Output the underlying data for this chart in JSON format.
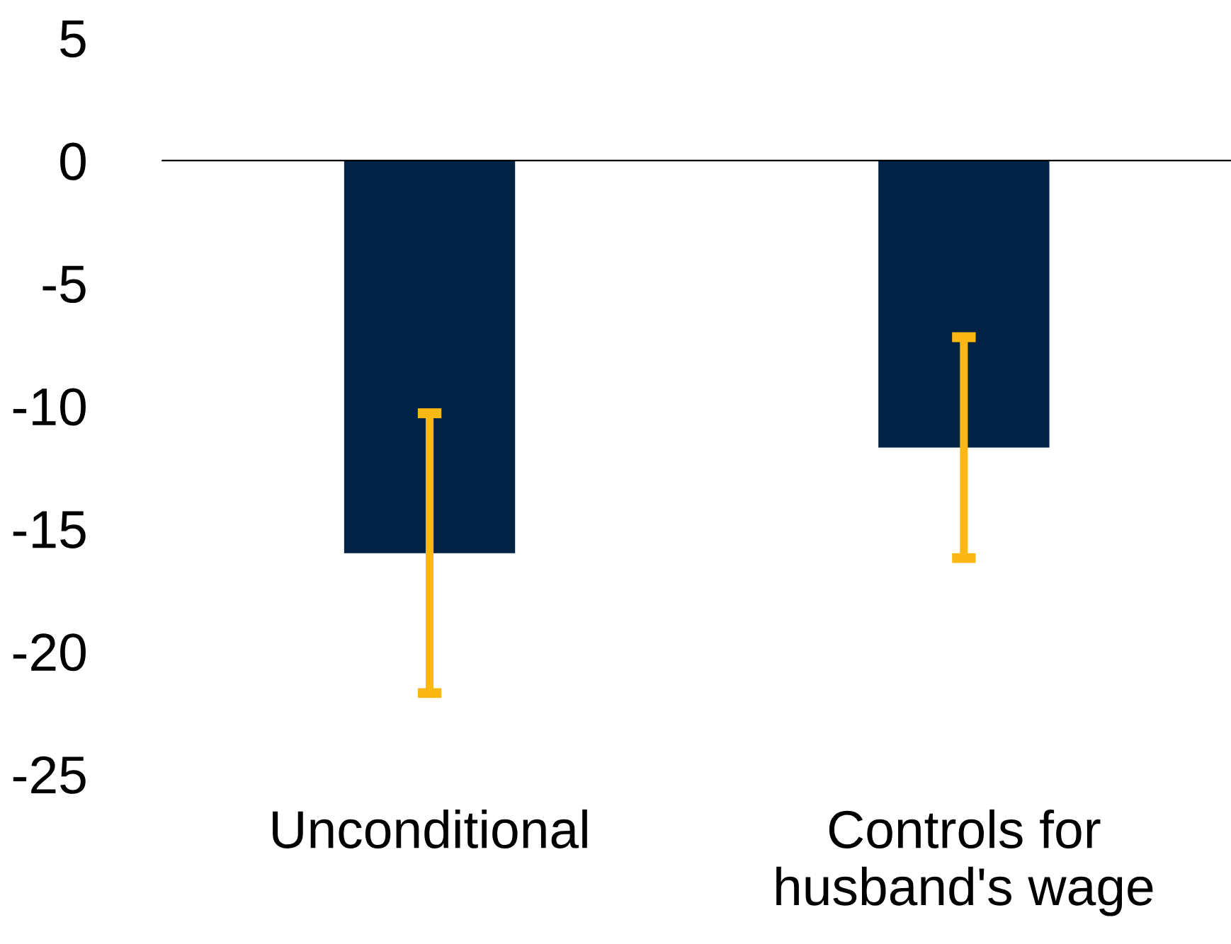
{
  "chart_data": {
    "type": "bar",
    "categories": [
      "Unconditional",
      "Controls for\nhusband's wage"
    ],
    "values": [
      -16,
      -11.7
    ],
    "errors": [
      5.7,
      4.5
    ],
    "color": "#002244",
    "ylim": [
      -25,
      5
    ],
    "yticks": [
      -25,
      -20,
      -15,
      -10,
      -5,
      0,
      5
    ]
  }
}
